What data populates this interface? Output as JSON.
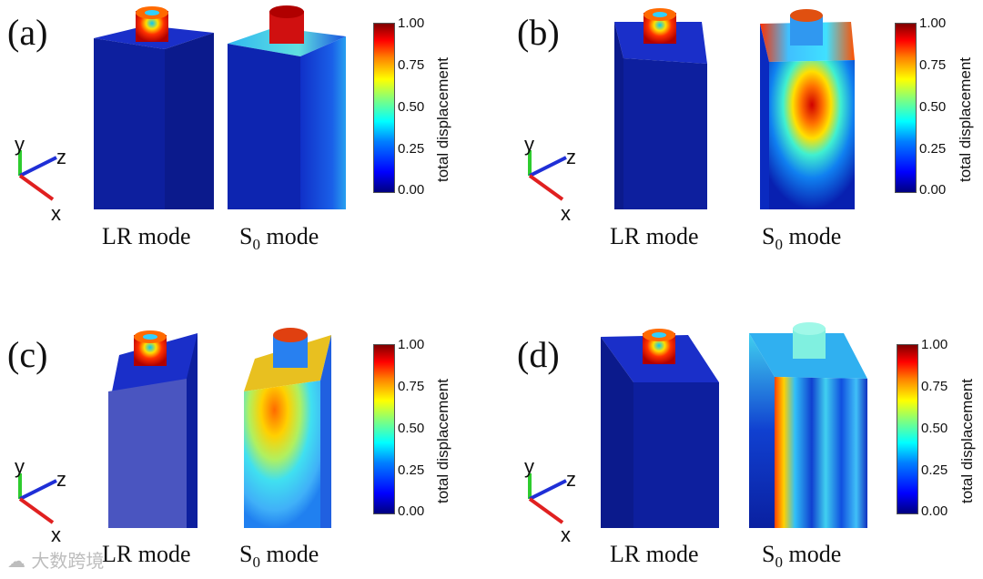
{
  "panels": [
    {
      "label": "(a)",
      "mode_left": "LR mode",
      "mode_right_main": "S",
      "mode_right_sub": "0",
      "mode_right_tail": " mode"
    },
    {
      "label": "(b)",
      "mode_left": "LR mode",
      "mode_right_main": "S",
      "mode_right_sub": "0",
      "mode_right_tail": " mode"
    },
    {
      "label": "(c)",
      "mode_left": "LR mode",
      "mode_right_main": "S",
      "mode_right_sub": "0",
      "mode_right_tail": " mode"
    },
    {
      "label": "(d)",
      "mode_left": "LR mode",
      "mode_right_main": "S",
      "mode_right_sub": "0",
      "mode_right_tail": " mode"
    }
  ],
  "colorbar": {
    "title": "total displacement",
    "ticks": [
      "1.00",
      "0.75",
      "0.50",
      "0.25",
      "0.00"
    ]
  },
  "axes": {
    "y": "y",
    "z": "z",
    "x": "x"
  },
  "colors": {
    "axis_y": "#2ecc2e",
    "axis_z": "#1f2fd6",
    "axis_x": "#e02020"
  },
  "watermark": "大数跨境"
}
